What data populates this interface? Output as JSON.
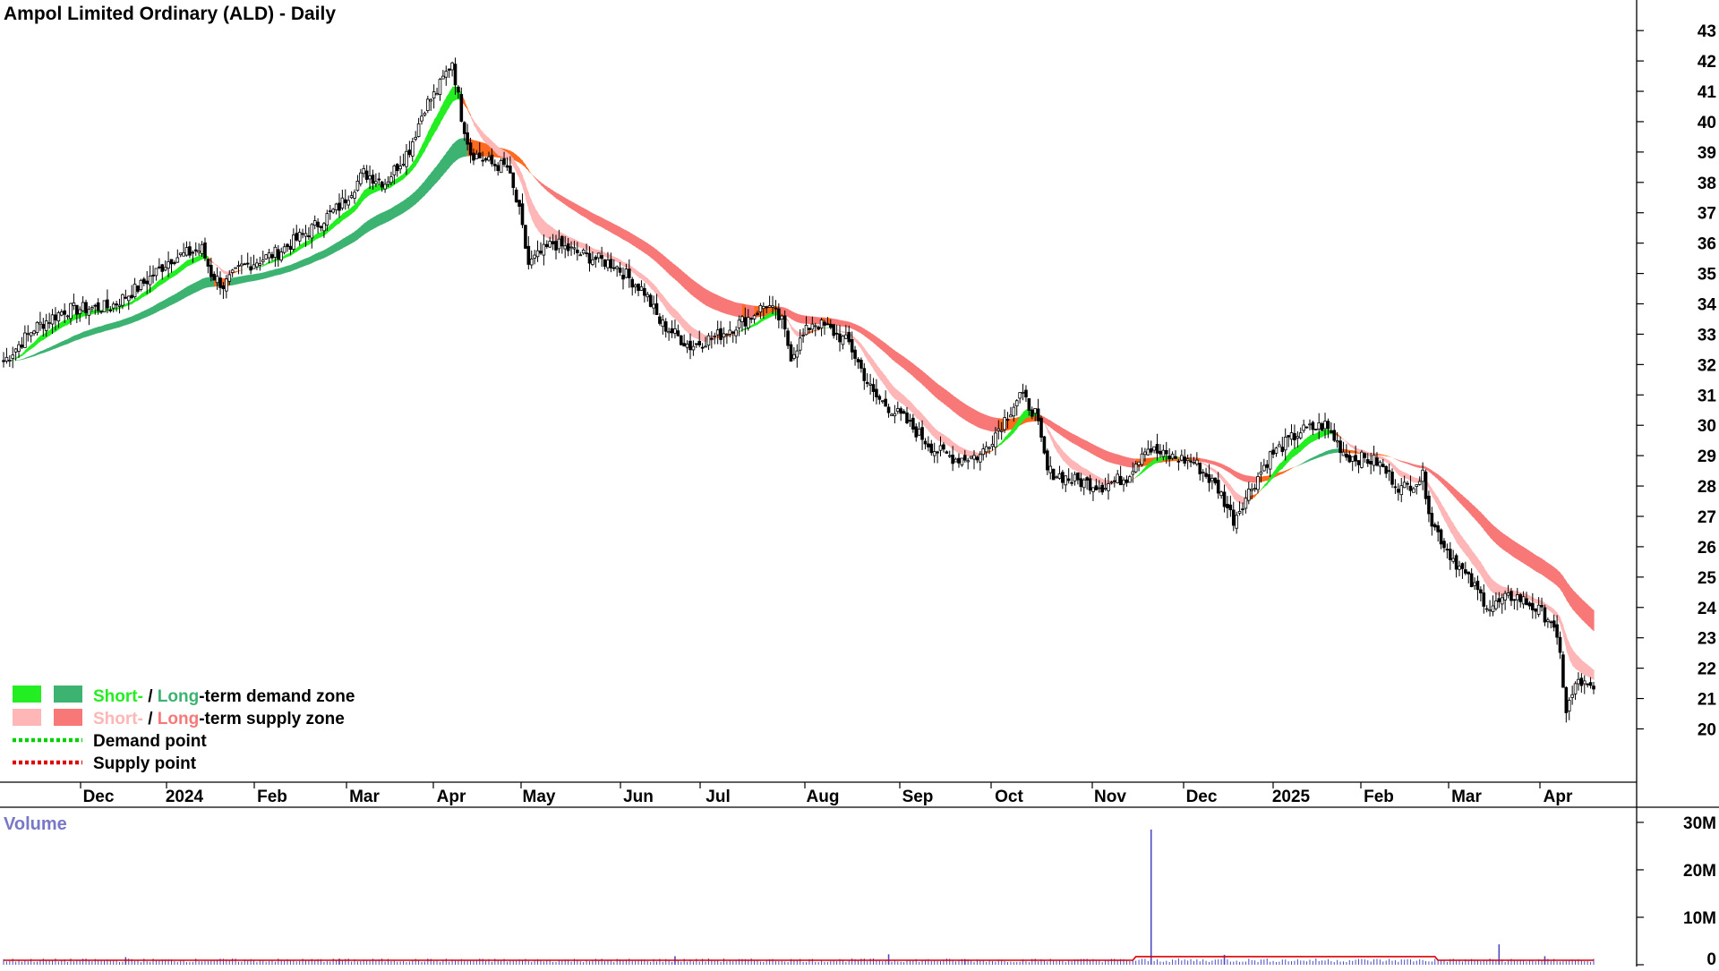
{
  "chart_data": {
    "type": "candlestick",
    "title": "Ampol Limited Ordinary (ALD) - Daily",
    "y_ticks": [
      20,
      21,
      22,
      23,
      24,
      25,
      26,
      27,
      28,
      29,
      30,
      31,
      32,
      33,
      34,
      35,
      36,
      37,
      38,
      39,
      40,
      41,
      42,
      43
    ],
    "ylim": [
      19.1,
      43.3
    ],
    "x_ticks": [
      "Dec",
      "2024",
      "Feb",
      "Mar",
      "Apr",
      "May",
      "Jun",
      "Jul",
      "Aug",
      "Sep",
      "Oct",
      "Nov",
      "Dec",
      "2025",
      "Feb",
      "Mar",
      "Apr"
    ],
    "price_path": [
      [
        0,
        32.1
      ],
      [
        10,
        33.2
      ],
      [
        20,
        33.8
      ],
      [
        35,
        33.9
      ],
      [
        45,
        34.6
      ],
      [
        55,
        35.5
      ],
      [
        65,
        35.8
      ],
      [
        68,
        35.0
      ],
      [
        72,
        34.6
      ],
      [
        78,
        35.2
      ],
      [
        90,
        35.7
      ],
      [
        100,
        36.4
      ],
      [
        110,
        37.2
      ],
      [
        118,
        38.3
      ],
      [
        125,
        38.0
      ],
      [
        133,
        39.1
      ],
      [
        138,
        40.5
      ],
      [
        142,
        41.0
      ],
      [
        147,
        42.0
      ],
      [
        150,
        40.2
      ],
      [
        153,
        39.0
      ],
      [
        160,
        38.6
      ],
      [
        165,
        38.5
      ],
      [
        169,
        37.0
      ],
      [
        172,
        35.3
      ],
      [
        180,
        36.0
      ],
      [
        190,
        35.6
      ],
      [
        200,
        35.3
      ],
      [
        210,
        34.4
      ],
      [
        215,
        33.4
      ],
      [
        225,
        32.6
      ],
      [
        235,
        33.0
      ],
      [
        245,
        33.6
      ],
      [
        250,
        34.0
      ],
      [
        255,
        33.4
      ],
      [
        258,
        32.3
      ],
      [
        265,
        33.4
      ],
      [
        270,
        33.2
      ],
      [
        277,
        32.7
      ],
      [
        285,
        31.0
      ],
      [
        295,
        30.2
      ],
      [
        305,
        29.2
      ],
      [
        312,
        28.9
      ],
      [
        320,
        29.0
      ],
      [
        328,
        30.2
      ],
      [
        333,
        31.0
      ],
      [
        338,
        30.4
      ],
      [
        342,
        28.5
      ],
      [
        350,
        28.2
      ],
      [
        360,
        28.0
      ],
      [
        368,
        28.3
      ],
      [
        374,
        29.3
      ],
      [
        380,
        29.0
      ],
      [
        390,
        28.8
      ],
      [
        398,
        27.9
      ],
      [
        403,
        26.9
      ],
      [
        408,
        27.8
      ],
      [
        415,
        29.0
      ],
      [
        425,
        29.8
      ],
      [
        433,
        30.0
      ],
      [
        440,
        29.0
      ],
      [
        450,
        28.8
      ],
      [
        458,
        27.9
      ],
      [
        465,
        28.3
      ],
      [
        468,
        26.8
      ],
      [
        473,
        25.9
      ],
      [
        480,
        24.9
      ],
      [
        487,
        24.0
      ],
      [
        495,
        24.4
      ],
      [
        500,
        24.1
      ],
      [
        507,
        23.6
      ],
      [
        510,
        22.4
      ],
      [
        512,
        20.6
      ],
      [
        516,
        21.6
      ],
      [
        521,
        21.2
      ]
    ],
    "volume": {
      "label": "Volume",
      "y_ticks": [
        "0",
        "10M",
        "20M",
        "30M"
      ],
      "ylim": [
        0,
        33
      ],
      "baseline_millions": 0.9,
      "spikes": [
        [
          40,
          1.6
        ],
        [
          110,
          1.3
        ],
        [
          220,
          1.8
        ],
        [
          290,
          2.2
        ],
        [
          315,
          1.2
        ],
        [
          376,
          28.5
        ],
        [
          400,
          2.1
        ],
        [
          490,
          4.3
        ],
        [
          505,
          1.8
        ]
      ]
    },
    "legend": {
      "placement": "bottom-left",
      "demand_zone": {
        "short": "Short-",
        "sep": " / ",
        "long": "Long",
        "suffix": "-term demand zone"
      },
      "supply_zone": {
        "short": "Short-",
        "sep": " / ",
        "long": "Long",
        "suffix": "-term supply zone"
      },
      "demand_point": "Demand point",
      "supply_point": "Supply point"
    },
    "colors": {
      "short_demand": "#22ee22",
      "long_demand": "#3cb371",
      "short_supply": "#ffb6b6",
      "long_supply": "#f87878",
      "transition": "#ff6a1e",
      "demand_point": "#00d000",
      "supply_point": "#e00000",
      "volume_bar": "#4b4bc0",
      "volume_line": "#d80000",
      "volume_label": "#7878c8"
    }
  }
}
